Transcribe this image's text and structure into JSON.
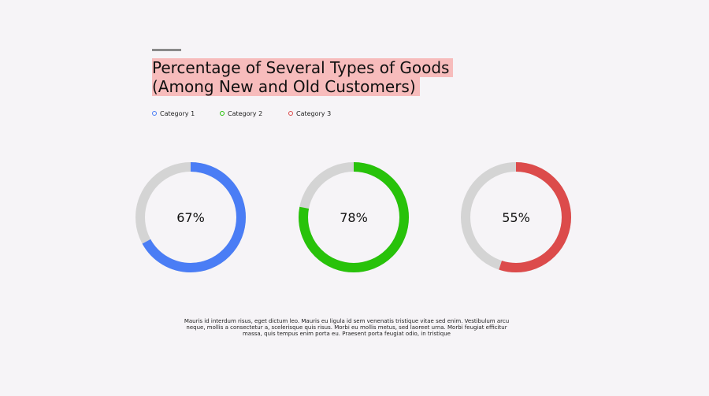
{
  "chart_data": {
    "type": "donut",
    "title_lines": [
      "Percentage of Several Types of Goods",
      "(Among New and Old Customers)"
    ],
    "legend": [
      {
        "label": "Category 1",
        "color": "#4a7df5"
      },
      {
        "label": "Category 2",
        "color": "#28c20a"
      },
      {
        "label": "Category 3",
        "color": "#dc4b4b"
      }
    ],
    "donuts": [
      {
        "category": "Category 1",
        "value": 67,
        "label": "67%",
        "color": "#4a7df5"
      },
      {
        "category": "Category 2",
        "value": 78,
        "label": "78%",
        "color": "#28c20a"
      },
      {
        "category": "Category 3",
        "value": 55,
        "label": "55%",
        "color": "#dc4b4b"
      }
    ],
    "track_color": "#d4d4d4"
  },
  "description": "Mauris id interdum risus, eget dictum leo. Mauris eu ligula id sem venenatis tristique vitae sed enim. Vestibulum arcu neque, mollis a consectetur a, scelerisque quis risus. Morbi eu mollis metus, sed laoreet urna. Morbi feugiat efficitur massa, quis tempus enim porta eu. Praesent porta feugiat odio, in tristique"
}
